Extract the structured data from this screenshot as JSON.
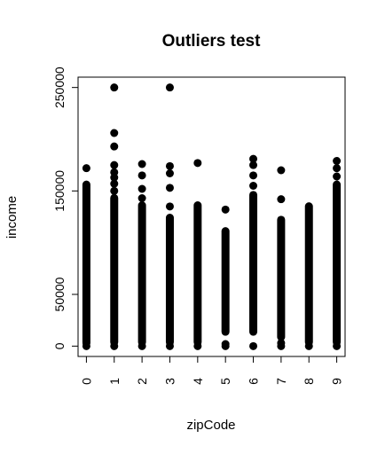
{
  "chart_data": {
    "type": "scatter",
    "title": "Outliers test",
    "xlabel": "zipCode",
    "ylabel": "income",
    "x_ticks": [
      "0",
      "1",
      "2",
      "3",
      "4",
      "5",
      "6",
      "7",
      "8",
      "9"
    ],
    "y_ticks": [
      "0",
      "50000",
      "150000",
      "250000"
    ],
    "y_tick_values": [
      0,
      50000,
      150000,
      250000
    ],
    "xlim": [
      -0.3,
      9.3
    ],
    "ylim": [
      -10000,
      260000
    ],
    "grid": false,
    "legend": "none",
    "point_color": "#000000",
    "columns": [
      {
        "x": 0,
        "range": [
          0,
          160000
        ],
        "outliers": [
          0,
          3000,
          172000
        ]
      },
      {
        "x": 1,
        "range": [
          0,
          147000
        ],
        "outliers": [
          0,
          150000,
          157000,
          163000,
          168000,
          175000,
          193000,
          206000,
          250000
        ]
      },
      {
        "x": 2,
        "range": [
          0,
          140000
        ],
        "outliers": [
          0,
          143000,
          152000,
          165000,
          176000
        ]
      },
      {
        "x": 3,
        "range": [
          0,
          128000
        ],
        "outliers": [
          0,
          135000,
          153000,
          167000,
          174000,
          250000
        ]
      },
      {
        "x": 4,
        "range": [
          0,
          140000
        ],
        "outliers": [
          0,
          177000
        ]
      },
      {
        "x": 5,
        "range": [
          10000,
          115000
        ],
        "outliers": [
          0,
          2000,
          132000
        ]
      },
      {
        "x": 6,
        "range": [
          10000,
          150000
        ],
        "outliers": [
          0,
          155000,
          165000,
          175000,
          181000
        ]
      },
      {
        "x": 7,
        "range": [
          5000,
          126000
        ],
        "outliers": [
          0,
          3000,
          142000,
          170000
        ]
      },
      {
        "x": 8,
        "range": [
          0,
          139000
        ],
        "outliers": [
          0
        ]
      },
      {
        "x": 9,
        "range": [
          0,
          160000
        ],
        "outliers": [
          0,
          164000,
          172000,
          179000
        ]
      }
    ]
  }
}
